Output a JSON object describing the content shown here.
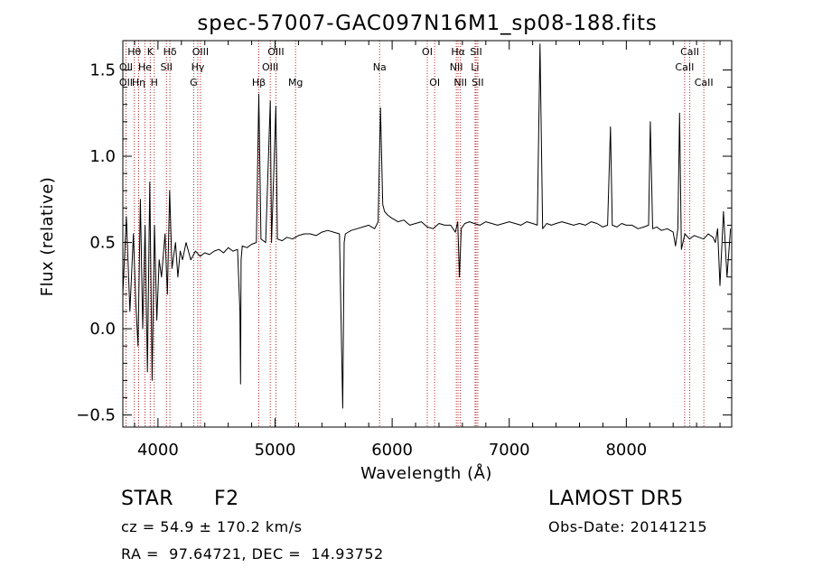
{
  "chart_data": {
    "type": "line",
    "title": "spec-57007-GAC097N16M1_sp08-188.fits",
    "xlabel": "Wavelength (Å)",
    "ylabel": "Flux (relative)",
    "xlim": [
      3700,
      8900
    ],
    "ylim": [
      -0.57,
      1.67
    ],
    "xticks": [
      4000,
      5000,
      6000,
      7000,
      8000
    ],
    "yticks": [
      -0.5,
      0.0,
      0.5,
      1.0,
      1.5
    ],
    "xtick_labels": [
      "4000",
      "5000",
      "6000",
      "7000",
      "8000"
    ],
    "ytick_labels": [
      "−0.5",
      "0.0",
      "0.5",
      "1.0",
      "1.5"
    ],
    "grid": false,
    "line_color": "#000000",
    "marker_color": "#b22222",
    "line_markers": [
      {
        "label": "Hθ",
        "x": 3798,
        "row": 0
      },
      {
        "label": "K",
        "x": 3934,
        "row": 0
      },
      {
        "label": "Hδ",
        "x": 4102,
        "row": 0
      },
      {
        "label": "OIII",
        "x": 4363,
        "row": 0
      },
      {
        "label": "OIII",
        "x": 5007,
        "row": 0
      },
      {
        "label": "OI",
        "x": 6300,
        "row": 0
      },
      {
        "label": "Hα",
        "x": 6563,
        "row": 0
      },
      {
        "label": "SII",
        "x": 6717,
        "row": 0
      },
      {
        "label": "CaII",
        "x": 8542,
        "row": 0
      },
      {
        "label": "OII",
        "x": 3727,
        "row": 1
      },
      {
        "label": "He",
        "x": 3889,
        "row": 1
      },
      {
        "label": "SII",
        "x": 4072,
        "row": 1
      },
      {
        "label": "Hγ",
        "x": 4340,
        "row": 1
      },
      {
        "label": "OIII",
        "x": 4959,
        "row": 1
      },
      {
        "label": "Na",
        "x": 5893,
        "row": 1
      },
      {
        "label": "NII",
        "x": 6548,
        "row": 1
      },
      {
        "label": "Li",
        "x": 6708,
        "row": 1
      },
      {
        "label": "CaII",
        "x": 8498,
        "row": 1
      },
      {
        "label": "OII",
        "x": 3727,
        "row": 2
      },
      {
        "label": "Hη",
        "x": 3835,
        "row": 2
      },
      {
        "label": "H",
        "x": 3968,
        "row": 2
      },
      {
        "label": "G",
        "x": 4305,
        "row": 2
      },
      {
        "label": "Hβ",
        "x": 4861,
        "row": 2
      },
      {
        "label": "Mg",
        "x": 5175,
        "row": 2
      },
      {
        "label": "OI",
        "x": 6363,
        "row": 2
      },
      {
        "label": "NII",
        "x": 6583,
        "row": 2
      },
      {
        "label": "SII",
        "x": 6731,
        "row": 2
      },
      {
        "label": "CaII",
        "x": 8662,
        "row": 2
      }
    ],
    "series": [
      {
        "x": [
          3700,
          3730,
          3760,
          3790,
          3810,
          3830,
          3850,
          3870,
          3890,
          3910,
          3930,
          3950,
          3970,
          3990,
          4010,
          4030,
          4060,
          4080,
          4100,
          4120,
          4150,
          4170,
          4190,
          4210,
          4240,
          4280,
          4320,
          4360,
          4400,
          4440,
          4480,
          4520,
          4560,
          4600,
          4640,
          4680,
          4700,
          4705,
          4710,
          4720,
          4760,
          4800,
          4840,
          4861,
          4880,
          4920,
          4959,
          4970,
          5007,
          5020,
          5060,
          5100,
          5150,
          5200,
          5250,
          5300,
          5350,
          5400,
          5450,
          5500,
          5550,
          5578,
          5590,
          5600,
          5650,
          5700,
          5750,
          5800,
          5850,
          5880,
          5900,
          5920,
          5935,
          5960,
          6000,
          6050,
          6100,
          6150,
          6200,
          6250,
          6300,
          6350,
          6400,
          6450,
          6500,
          6540,
          6560,
          6575,
          6590,
          6620,
          6660,
          6700,
          6750,
          6800,
          6850,
          6900,
          6950,
          7000,
          7050,
          7100,
          7150,
          7200,
          7240,
          7263,
          7285,
          7320,
          7360,
          7400,
          7450,
          7500,
          7550,
          7600,
          7650,
          7700,
          7750,
          7800,
          7840,
          7865,
          7880,
          7920,
          7960,
          8000,
          8050,
          8100,
          8150,
          8190,
          8205,
          8225,
          8260,
          8300,
          8350,
          8400,
          8420,
          8440,
          8455,
          8470,
          8500,
          8540,
          8580,
          8620,
          8660,
          8700,
          8740,
          8760,
          8780,
          8800,
          8830,
          8860,
          8890
        ],
        "y": [
          0.2,
          0.65,
          0.1,
          0.55,
          0.15,
          -0.1,
          0.75,
          0.0,
          0.6,
          -0.25,
          0.85,
          -0.3,
          0.6,
          0.05,
          0.4,
          0.3,
          0.55,
          0.2,
          0.8,
          0.35,
          0.5,
          0.3,
          0.45,
          0.4,
          0.5,
          0.4,
          0.45,
          0.42,
          0.44,
          0.43,
          0.45,
          0.46,
          0.44,
          0.47,
          0.45,
          0.46,
          0.1,
          -0.32,
          0.4,
          0.48,
          0.47,
          0.49,
          0.5,
          1.36,
          0.52,
          0.5,
          1.32,
          0.5,
          1.29,
          0.52,
          0.51,
          0.53,
          0.52,
          0.54,
          0.55,
          0.55,
          0.54,
          0.56,
          0.57,
          0.56,
          0.55,
          -0.46,
          0.5,
          0.55,
          0.57,
          0.58,
          0.59,
          0.6,
          0.58,
          0.62,
          1.28,
          0.72,
          0.68,
          0.66,
          0.64,
          0.62,
          0.63,
          0.6,
          0.61,
          0.62,
          0.59,
          0.58,
          0.61,
          0.6,
          0.6,
          0.56,
          0.62,
          0.3,
          0.58,
          0.61,
          0.62,
          0.61,
          0.6,
          0.62,
          0.61,
          0.6,
          0.61,
          0.62,
          0.61,
          0.6,
          0.62,
          0.61,
          0.6,
          1.65,
          0.58,
          0.61,
          0.6,
          0.61,
          0.62,
          0.61,
          0.6,
          0.61,
          0.6,
          0.62,
          0.61,
          0.59,
          0.6,
          1.17,
          0.6,
          0.59,
          0.61,
          0.6,
          0.6,
          0.58,
          0.59,
          0.6,
          1.2,
          0.58,
          0.59,
          0.57,
          0.58,
          0.56,
          0.48,
          0.58,
          1.25,
          0.46,
          0.55,
          0.52,
          0.54,
          0.53,
          0.52,
          0.55,
          0.53,
          0.5,
          0.58,
          0.25,
          0.68,
          0.3,
          0.58
        ]
      }
    ]
  },
  "footer": {
    "object_class": "STAR",
    "subclass": "F2",
    "cz": "cz = 54.9 ± 170.2 km/s",
    "coords": "RA =  97.64721, DEC =  14.93752",
    "survey": "LAMOST DR5",
    "obs_date": "Obs-Date: 20141215"
  }
}
